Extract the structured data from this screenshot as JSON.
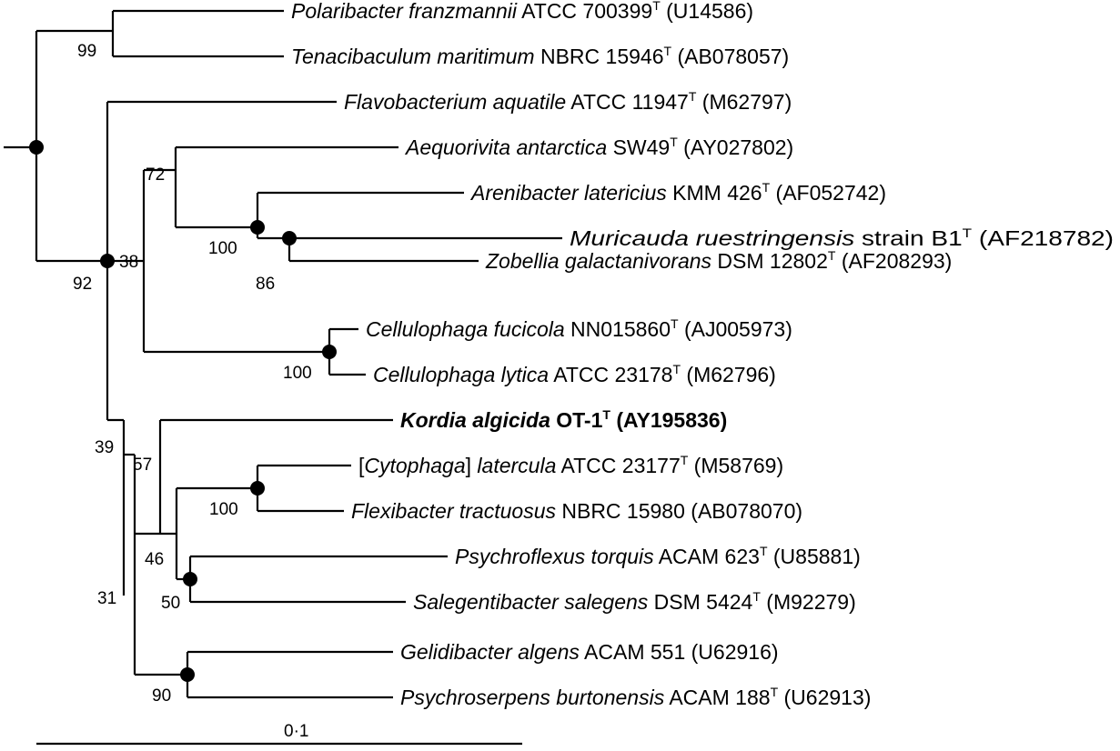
{
  "taxa": {
    "polaribacter": {
      "genus": "Polaribacter franzmannii",
      "strain": " ATCC 700399",
      "sup": "T",
      "acc": " (U14586)"
    },
    "tenacibaculum": {
      "genus": "Tenacibaculum maritimum",
      "strain": " NBRC 15946",
      "sup": "T",
      "acc": " (AB078057)"
    },
    "flavobacterium": {
      "genus": "Flavobacterium aquatile",
      "strain": " ATCC 11947",
      "sup": "T",
      "acc": " (M62797)"
    },
    "aequorivita": {
      "genus": "Aequorivita antarctica",
      "strain": " SW49",
      "sup": "T",
      "acc": " (AY027802)"
    },
    "arenibacter": {
      "genus": "Arenibacter latericius",
      "strain": " KMM 426",
      "sup": "T",
      "acc": " (AF052742)"
    },
    "muricauda": {
      "genus": "Muricauda ruestringensis",
      "strain": " strain B1",
      "sup": "T",
      "acc": " (AF218782)"
    },
    "zobellia": {
      "genus": "Zobellia galactanivorans",
      "strain": " DSM 12802",
      "sup": "T",
      "acc": " (AF208293)"
    },
    "cellulophaga_fucicola": {
      "genus": "Cellulophaga fucicola",
      "strain": " NN015860",
      "sup": "T",
      "acc": " (AJ005973)"
    },
    "cellulophaga_lytica": {
      "genus": "Cellulophaga lytica",
      "strain": " ATCC 23178",
      "sup": "T",
      "acc": " (M62796)"
    },
    "kordia": {
      "genus": "Kordia algicida",
      "strain": " OT-1",
      "sup": "T",
      "acc": " (AY195836)"
    },
    "cytophaga": {
      "pre": "[",
      "genus": "Cytophaga",
      "post": "] ",
      "genus2": "latercula",
      "strain": " ATCC 23177",
      "sup": "T",
      "acc": " (M58769)"
    },
    "flexibacter": {
      "genus": "Flexibacter tractuosus",
      "strain": " NBRC 15980",
      "acc": " (AB078070)"
    },
    "psychroflexus": {
      "genus": "Psychroflexus torquis",
      "strain": " ACAM 623",
      "sup": "T",
      "acc": " (U85881)"
    },
    "salegentibacter": {
      "genus": "Salegentibacter salegens",
      "strain": " DSM 5424",
      "sup": "T",
      "acc": " (M92279)"
    },
    "gelidibacter": {
      "genus": "Gelidibacter algens",
      "strain": " ACAM 551",
      "acc": " (U62916)"
    },
    "psychroserpens": {
      "genus": "Psychroserpens burtonensis",
      "strain": " ACAM 188",
      "sup": "T",
      "acc": " (U62913)"
    }
  },
  "bootstrap": {
    "b99": "99",
    "b92": "92",
    "b72": "72",
    "b38": "38",
    "b100a": "100",
    "b86": "86",
    "b100b": "100",
    "b39": "39",
    "b57": "57",
    "b100c": "100",
    "b46": "46",
    "b50": "50",
    "b31": "31",
    "b90": "90"
  },
  "scale": {
    "label": "0·1"
  }
}
